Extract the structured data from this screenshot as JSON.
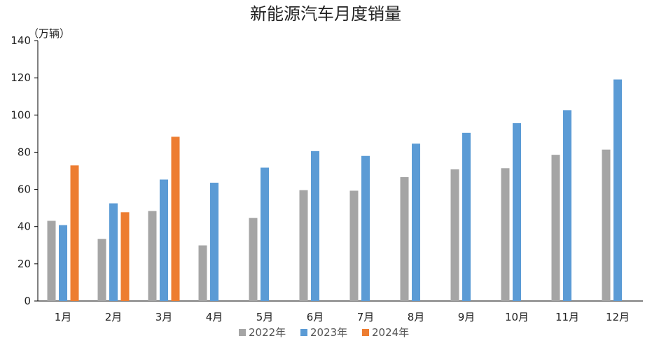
{
  "chart_data": {
    "type": "bar",
    "title": "新能源汽车月度销量",
    "ylabel": "（万辆）",
    "xlabel": "",
    "ylim": [
      0,
      140
    ],
    "yticks": [
      0,
      20,
      40,
      60,
      80,
      100,
      120,
      140
    ],
    "categories": [
      "1月",
      "2月",
      "3月",
      "4月",
      "5月",
      "6月",
      "7月",
      "8月",
      "9月",
      "10月",
      "11月",
      "12月"
    ],
    "series": [
      {
        "name": "2022年",
        "color": "#a5a5a5",
        "values": [
          43.1,
          33.4,
          48.4,
          29.9,
          44.7,
          59.6,
          59.3,
          66.6,
          70.8,
          71.4,
          78.6,
          81.4
        ]
      },
      {
        "name": "2023年",
        "color": "#5b9bd5",
        "values": [
          40.8,
          52.5,
          65.3,
          63.6,
          71.7,
          80.6,
          78.0,
          84.6,
          90.4,
          95.6,
          102.6,
          119.1
        ]
      },
      {
        "name": "2024年",
        "color": "#ed7d31",
        "values": [
          72.9,
          47.7,
          88.3,
          null,
          null,
          null,
          null,
          null,
          null,
          null,
          null,
          null
        ]
      }
    ],
    "grid": false,
    "legend_position": "bottom"
  }
}
